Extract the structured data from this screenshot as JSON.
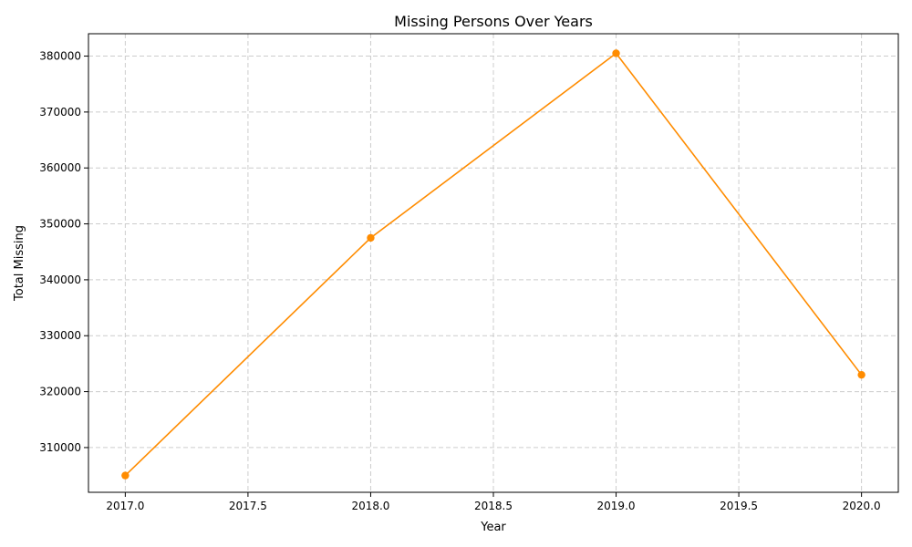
{
  "chart_data": {
    "type": "line",
    "title": "Missing Persons Over Years",
    "xlabel": "Year",
    "ylabel": "Total Missing",
    "x": [
      2017,
      2018,
      2019,
      2020
    ],
    "series": [
      {
        "values": [
          305000,
          347500,
          380500,
          323000
        ]
      }
    ],
    "xlim": [
      2016.85,
      2020.15
    ],
    "ylim": [
      302000,
      384000
    ],
    "x_ticks": [
      2017.0,
      2017.5,
      2018.0,
      2018.5,
      2019.0,
      2019.5,
      2020.0
    ],
    "x_tick_labels": [
      "2017.0",
      "2017.5",
      "2018.0",
      "2018.5",
      "2019.0",
      "2019.5",
      "2020.0"
    ],
    "y_ticks": [
      310000,
      320000,
      330000,
      340000,
      350000,
      360000,
      370000,
      380000
    ],
    "y_tick_labels": [
      "310000",
      "320000",
      "330000",
      "340000",
      "350000",
      "360000",
      "370000",
      "380000"
    ],
    "grid": true,
    "line_color": "#ff8c00",
    "marker": "circle"
  }
}
